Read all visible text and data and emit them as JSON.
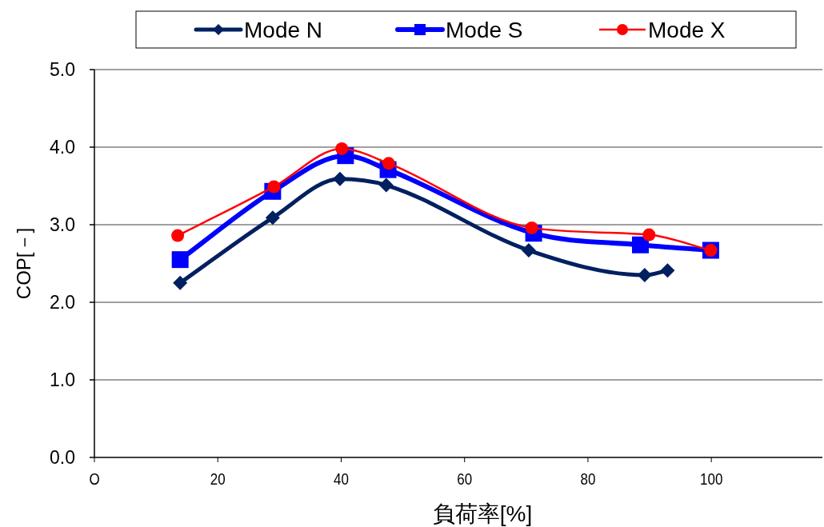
{
  "chart_data": {
    "type": "line",
    "xlabel": "負荷率[%]",
    "ylabel": "COP[－]",
    "xlim": [
      0,
      118
    ],
    "xticks": [
      {
        "value": 0,
        "label": "O"
      },
      20,
      40,
      60,
      80,
      100
    ],
    "ylim": [
      0,
      5
    ],
    "yticks": [
      {
        "value": 0,
        "label": "0.0"
      },
      {
        "value": 1,
        "label": "1.0"
      },
      {
        "value": 2,
        "label": "2.0"
      },
      {
        "value": 3,
        "label": "3.0"
      },
      {
        "value": 4,
        "label": "4.0"
      },
      {
        "value": 5,
        "label": "5.0"
      }
    ],
    "grid": "y",
    "legend": "top",
    "series": [
      {
        "name": "Mode N",
        "color": "#002060",
        "marker": "diamond",
        "x": [
          13.9,
          28.9,
          39.8,
          47.3,
          70.4,
          89.2,
          92.9
        ],
        "values": [
          2.25,
          3.09,
          3.59,
          3.51,
          2.67,
          2.35,
          2.41
        ]
      },
      {
        "name": "Mode S",
        "color": "#0000ff",
        "marker": "square",
        "x": [
          13.9,
          28.9,
          40.7,
          47.6,
          71.2,
          88.5,
          99.9
        ],
        "values": [
          2.55,
          3.43,
          3.89,
          3.71,
          2.89,
          2.74,
          2.67
        ]
      },
      {
        "name": "Mode X",
        "color": "#ff0000",
        "marker": "circle",
        "x": [
          13.5,
          29.1,
          40.1,
          47.7,
          70.9,
          89.9,
          99.9
        ],
        "values": [
          2.86,
          3.49,
          3.98,
          3.79,
          2.96,
          2.87,
          2.67
        ]
      }
    ]
  }
}
